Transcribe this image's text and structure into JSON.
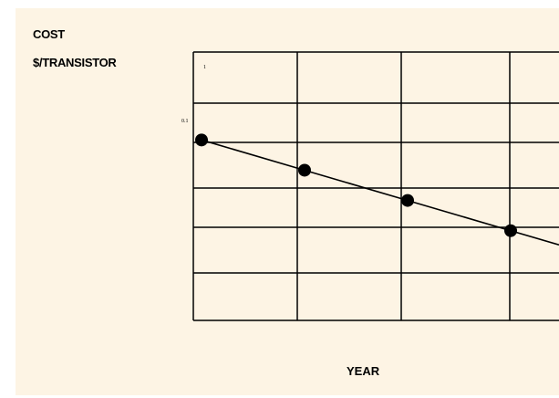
{
  "colors": {
    "background": "#fdf4e4",
    "grid": "#000000",
    "line": "#000000",
    "marker": "#000000"
  },
  "chart_data": {
    "type": "line",
    "title": "",
    "ylabel_lines": [
      "COST",
      "$/TRANSISTOR"
    ],
    "xlabel": "YEAR",
    "yscale": "log",
    "ylim": [
      0.0032,
      1.5
    ],
    "y_tick_labels": [
      "1",
      "0.1"
    ],
    "grid": true,
    "legend": "none",
    "series": [
      {
        "x": [
          0,
          1,
          2,
          3
        ],
        "y": [
          0.2,
          0.1,
          0.05,
          0.025
        ]
      }
    ]
  }
}
